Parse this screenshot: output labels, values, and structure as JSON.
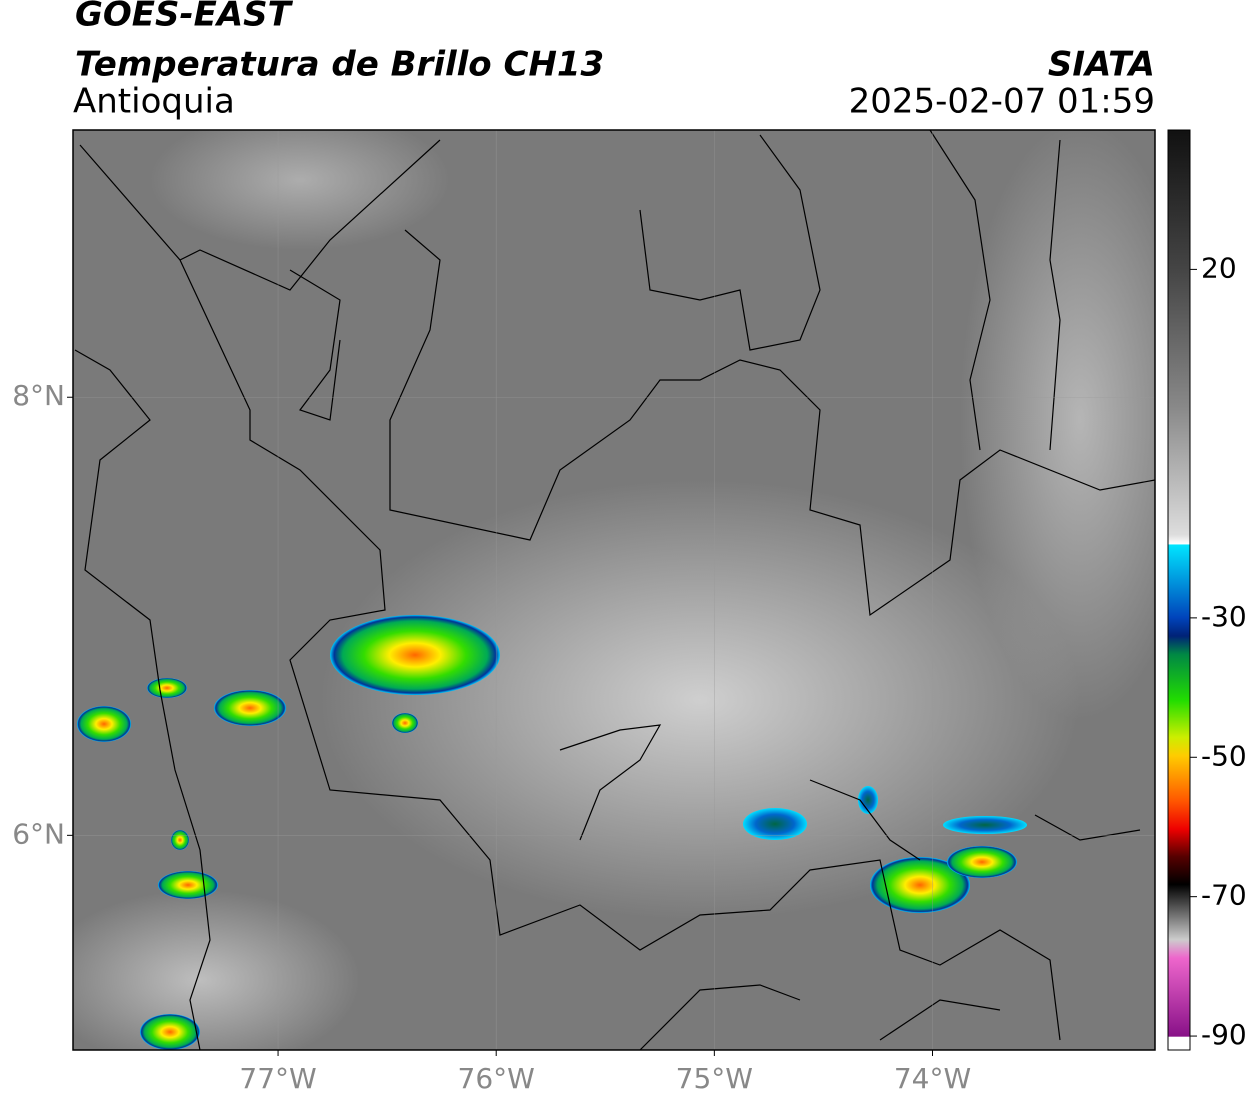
{
  "header": {
    "product": "GOES-EAST",
    "title": "Temperatura de Brillo CH13",
    "region": "Antioquia",
    "source": "SIATA",
    "datetime": "2025-02-07 01:59"
  },
  "map": {
    "lonlim": [
      -77.94,
      -72.98
    ],
    "latlim": [
      5.02,
      9.22
    ],
    "lonticks": [
      {
        "value": -77,
        "label": "77°W"
      },
      {
        "value": -76,
        "label": "76°W"
      },
      {
        "value": -75,
        "label": "75°W"
      },
      {
        "value": -74,
        "label": "74°W"
      }
    ],
    "latticks": [
      {
        "value": 8,
        "label": "8°N"
      },
      {
        "value": 6,
        "label": "6°N"
      }
    ]
  },
  "colorbar": {
    "range": [
      -92,
      40
    ],
    "ticks": [
      20,
      -30,
      -50,
      -70,
      -90
    ]
  }
}
